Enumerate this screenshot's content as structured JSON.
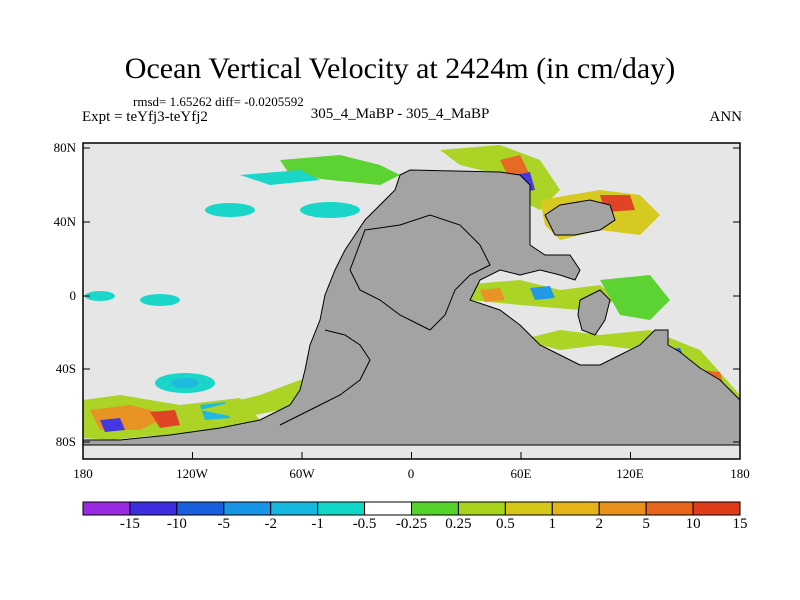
{
  "title": "Ocean Vertical Velocity at 2424m (in cm/day)",
  "stats": "rmsd= 1.65262 diff= -0.0205592",
  "expt": "Expt = teYfj3-teYfj2",
  "cases": "305_4_MaBP - 305_4_MaBP",
  "season": "ANN",
  "map": {
    "lat_ticks": [
      "80N",
      "40N",
      "0",
      "40S",
      "80S"
    ],
    "lon_ticks": [
      "180",
      "120W",
      "60W",
      "0",
      "60E",
      "120E",
      "180"
    ],
    "land_color": "#a3a3a3",
    "ocean_color": "#e6e6e6"
  },
  "colorbar": {
    "labels": [
      "-15",
      "-10",
      "-5",
      "-2",
      "-1",
      "-0.5",
      "-0.25",
      "0.25",
      "0.5",
      "1",
      "2",
      "5",
      "10",
      "15"
    ],
    "colors": [
      "#9a2be2",
      "#3d2fe0",
      "#1a5fe0",
      "#1795e6",
      "#16b8e0",
      "#10d6c8",
      "#ffffff",
      "#55d22a",
      "#a8d41c",
      "#d6c818",
      "#e6b418",
      "#e8901a",
      "#e8641a",
      "#e03c1a"
    ]
  }
}
